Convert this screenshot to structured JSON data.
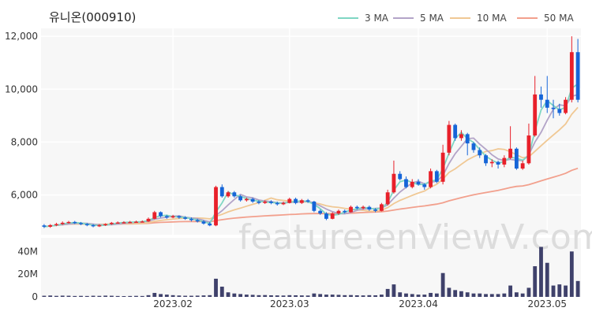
{
  "title": "유니온(000910)",
  "watermark": "feature.enViewV.com",
  "colors": {
    "ma3": "#7fd6c3",
    "ma5": "#b3a4c8",
    "ma10": "#f0c894",
    "ma50": "#f2a08d",
    "up": "#e8202a",
    "down": "#1565d8",
    "volume": "#3f416b",
    "panel_bg": "#f7f7f7"
  },
  "chart_data": {
    "type": "candlestick",
    "title": "유니온(000910)",
    "legend": [
      "3 MA",
      "5 MA",
      "10 MA",
      "50 MA"
    ],
    "legend_position": "top-right",
    "y_ticks": [
      "12,000",
      "10,000",
      "8,000",
      "6,000"
    ],
    "y_tick_values": [
      12000,
      10000,
      8000,
      6000
    ],
    "ylim": [
      4500,
      12300
    ],
    "volume_ticks": [
      "40M",
      "20M",
      "0"
    ],
    "volume_tick_values": [
      40,
      20,
      0
    ],
    "volume_ylim": [
      0,
      52
    ],
    "volume_unit": "M",
    "x_ticks": [
      {
        "label": "2023.02",
        "index": 21
      },
      {
        "label": "2023.03",
        "index": 40
      },
      {
        "label": "2023.04",
        "index": 61
      },
      {
        "label": "2023.05",
        "index": 82
      }
    ],
    "grid": true,
    "candles": [
      [
        4850,
        4800,
        4900,
        4750,
        1.0
      ],
      [
        4800,
        4860,
        4900,
        4760,
        1.2
      ],
      [
        4860,
        4900,
        4950,
        4820,
        0.9
      ],
      [
        4900,
        4950,
        5000,
        4870,
        1.1
      ],
      [
        4950,
        4980,
        5020,
        4920,
        1.0
      ],
      [
        4980,
        4940,
        5020,
        4900,
        0.8
      ],
      [
        4940,
        4900,
        4980,
        4860,
        0.9
      ],
      [
        4900,
        4860,
        4940,
        4820,
        0.8
      ],
      [
        4860,
        4820,
        4900,
        4780,
        1.0
      ],
      [
        4820,
        4860,
        4900,
        4790,
        0.9
      ],
      [
        4860,
        4900,
        4930,
        4830,
        1.1
      ],
      [
        4900,
        4950,
        4980,
        4870,
        1.0
      ],
      [
        4950,
        4960,
        5000,
        4920,
        0.8
      ],
      [
        4960,
        4970,
        5010,
        4930,
        0.7
      ],
      [
        4970,
        4980,
        5020,
        4940,
        0.8
      ],
      [
        4980,
        4990,
        5030,
        4950,
        0.9
      ],
      [
        4990,
        5000,
        5040,
        4960,
        0.8
      ],
      [
        5000,
        5100,
        5150,
        4980,
        1.5
      ],
      [
        5100,
        5350,
        5400,
        5080,
        3.5
      ],
      [
        5350,
        5200,
        5380,
        5150,
        2.5
      ],
      [
        5200,
        5150,
        5250,
        5100,
        2.0
      ],
      [
        5150,
        5200,
        5250,
        5120,
        1.5
      ],
      [
        5200,
        5150,
        5230,
        5100,
        1.2
      ],
      [
        5150,
        5100,
        5200,
        5060,
        1.0
      ],
      [
        5100,
        5050,
        5150,
        5000,
        1.0
      ],
      [
        5050,
        5000,
        5100,
        4960,
        1.1
      ],
      [
        5000,
        4920,
        5050,
        4880,
        1.3
      ],
      [
        4920,
        4850,
        4980,
        4820,
        1.5
      ],
      [
        4850,
        6300,
        6350,
        4820,
        16.0
      ],
      [
        6300,
        5950,
        6400,
        5900,
        9.0
      ],
      [
        5950,
        6100,
        6150,
        5900,
        4.0
      ],
      [
        6100,
        5950,
        6150,
        5900,
        3.0
      ],
      [
        5950,
        5800,
        6000,
        5750,
        2.5
      ],
      [
        5800,
        5850,
        5900,
        5750,
        2.0
      ],
      [
        5850,
        5750,
        5900,
        5700,
        1.8
      ],
      [
        5750,
        5700,
        5800,
        5650,
        1.5
      ],
      [
        5700,
        5750,
        5800,
        5660,
        1.6
      ],
      [
        5750,
        5700,
        5800,
        5650,
        1.4
      ],
      [
        5700,
        5650,
        5750,
        5600,
        1.3
      ],
      [
        5650,
        5700,
        5750,
        5620,
        1.2
      ],
      [
        5700,
        5850,
        5900,
        5680,
        1.5
      ],
      [
        5850,
        5700,
        5900,
        5650,
        1.4
      ],
      [
        5700,
        5800,
        5850,
        5660,
        1.3
      ],
      [
        5800,
        5750,
        5850,
        5700,
        1.2
      ],
      [
        5750,
        5400,
        5780,
        5350,
        3.0
      ],
      [
        5400,
        5300,
        5450,
        5250,
        2.5
      ],
      [
        5300,
        5100,
        5350,
        5050,
        2.0
      ],
      [
        5100,
        5300,
        5350,
        5080,
        2.0
      ],
      [
        5300,
        5400,
        5450,
        5250,
        1.8
      ],
      [
        5400,
        5350,
        5450,
        5300,
        1.5
      ],
      [
        5350,
        5550,
        5600,
        5330,
        1.6
      ],
      [
        5550,
        5500,
        5600,
        5450,
        1.4
      ],
      [
        5500,
        5550,
        5600,
        5450,
        1.3
      ],
      [
        5550,
        5450,
        5600,
        5400,
        1.5
      ],
      [
        5450,
        5400,
        5500,
        5350,
        1.4
      ],
      [
        5400,
        5650,
        5700,
        5380,
        2.0
      ],
      [
        5650,
        6100,
        6200,
        5600,
        7.0
      ],
      [
        6100,
        6800,
        7300,
        6050,
        11.0
      ],
      [
        6800,
        6600,
        6900,
        6550,
        4.0
      ],
      [
        6600,
        6300,
        6700,
        6250,
        3.0
      ],
      [
        6300,
        6500,
        6600,
        6250,
        2.5
      ],
      [
        6500,
        6400,
        6600,
        6350,
        2.0
      ],
      [
        6400,
        6300,
        6450,
        6200,
        2.0
      ],
      [
        6300,
        6900,
        7000,
        6250,
        3.5
      ],
      [
        6900,
        6500,
        6950,
        6450,
        3.0
      ],
      [
        6500,
        7600,
        7900,
        6400,
        21.0
      ],
      [
        7600,
        8650,
        8800,
        7500,
        8.0
      ],
      [
        8650,
        8150,
        8700,
        8050,
        6.0
      ],
      [
        8150,
        8300,
        8450,
        8050,
        5.0
      ],
      [
        8300,
        7950,
        8350,
        7500,
        4.0
      ],
      [
        7950,
        7700,
        8000,
        7600,
        3.0
      ],
      [
        7700,
        7500,
        7800,
        7400,
        3.0
      ],
      [
        7500,
        7200,
        7550,
        7100,
        2.5
      ],
      [
        7200,
        7250,
        7350,
        7050,
        2.5
      ],
      [
        7250,
        7150,
        7300,
        7000,
        2.5
      ],
      [
        7150,
        7400,
        7500,
        7050,
        3.0
      ],
      [
        7400,
        7750,
        8600,
        7350,
        10.0
      ],
      [
        7750,
        7000,
        7800,
        6950,
        4.0
      ],
      [
        7000,
        7200,
        7300,
        6950,
        3.0
      ],
      [
        7200,
        8250,
        8700,
        7150,
        8.0
      ],
      [
        8250,
        9800,
        10500,
        8200,
        27.0
      ],
      [
        9800,
        9600,
        10100,
        9300,
        44.0
      ],
      [
        9600,
        9300,
        10500,
        9100,
        30.0
      ],
      [
        9300,
        9250,
        9600,
        8900,
        10.0
      ],
      [
        9250,
        9100,
        9450,
        9000,
        11.0
      ],
      [
        9100,
        9600,
        9700,
        9050,
        10.0
      ],
      [
        9600,
        11400,
        12000,
        9500,
        40.0
      ],
      [
        11400,
        9600,
        11900,
        9500,
        14.0
      ]
    ]
  }
}
